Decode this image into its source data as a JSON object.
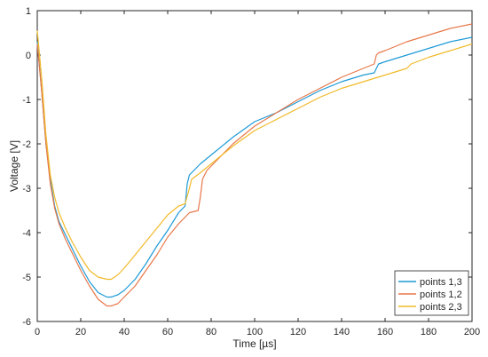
{
  "chart_data": {
    "type": "line",
    "title": "",
    "xlabel": "Time [µs]",
    "ylabel": "Voltage [V]",
    "xlim": [
      0,
      200
    ],
    "ylim": [
      -6,
      1
    ],
    "xticks": [
      0,
      20,
      40,
      60,
      80,
      100,
      120,
      140,
      160,
      180,
      200
    ],
    "xtick_labels": [
      "0",
      "20",
      "40",
      "60",
      "80",
      "100",
      "120",
      "140",
      "160",
      "180",
      "200"
    ],
    "yticks": [
      1,
      0,
      -1,
      -2,
      -3,
      -4,
      -5,
      -6
    ],
    "ytick_labels": [
      "1",
      "0",
      "-1",
      "-2",
      "-3",
      "-4",
      "-5",
      "-6"
    ],
    "grid": false,
    "legend_position": "bottom-right",
    "series": [
      {
        "name": "points 1,3",
        "color": "#1f9ad6",
        "points": [
          [
            0,
            0.3
          ],
          [
            2,
            -0.8
          ],
          [
            4,
            -2.0
          ],
          [
            6,
            -2.8
          ],
          [
            8,
            -3.4
          ],
          [
            10,
            -3.75
          ],
          [
            13,
            -4.05
          ],
          [
            16,
            -4.35
          ],
          [
            20,
            -4.75
          ],
          [
            24,
            -5.1
          ],
          [
            28,
            -5.35
          ],
          [
            32,
            -5.45
          ],
          [
            34,
            -5.45
          ],
          [
            37,
            -5.4
          ],
          [
            40,
            -5.3
          ],
          [
            45,
            -5.05
          ],
          [
            50,
            -4.7
          ],
          [
            55,
            -4.3
          ],
          [
            60,
            -3.95
          ],
          [
            65,
            -3.55
          ],
          [
            68,
            -3.4
          ],
          [
            69,
            -2.9
          ],
          [
            70,
            -2.7
          ],
          [
            75,
            -2.45
          ],
          [
            80,
            -2.25
          ],
          [
            90,
            -1.85
          ],
          [
            100,
            -1.5
          ],
          [
            110,
            -1.3
          ],
          [
            120,
            -1.05
          ],
          [
            130,
            -0.8
          ],
          [
            140,
            -0.6
          ],
          [
            150,
            -0.45
          ],
          [
            155,
            -0.4
          ],
          [
            156,
            -0.3
          ],
          [
            157,
            -0.2
          ],
          [
            160,
            -0.15
          ],
          [
            170,
            0.0
          ],
          [
            180,
            0.15
          ],
          [
            190,
            0.3
          ],
          [
            200,
            0.4
          ]
        ]
      },
      {
        "name": "points 1,2",
        "color": "#e8784a",
        "points": [
          [
            0,
            0.25
          ],
          [
            2,
            -0.8
          ],
          [
            4,
            -2.0
          ],
          [
            6,
            -2.9
          ],
          [
            8,
            -3.45
          ],
          [
            10,
            -3.8
          ],
          [
            13,
            -4.15
          ],
          [
            16,
            -4.45
          ],
          [
            20,
            -4.85
          ],
          [
            24,
            -5.2
          ],
          [
            28,
            -5.5
          ],
          [
            32,
            -5.65
          ],
          [
            34,
            -5.65
          ],
          [
            37,
            -5.6
          ],
          [
            40,
            -5.45
          ],
          [
            45,
            -5.2
          ],
          [
            50,
            -4.85
          ],
          [
            55,
            -4.5
          ],
          [
            60,
            -4.1
          ],
          [
            65,
            -3.8
          ],
          [
            70,
            -3.55
          ],
          [
            74,
            -3.5
          ],
          [
            75,
            -3.2
          ],
          [
            76,
            -2.8
          ],
          [
            78,
            -2.6
          ],
          [
            82,
            -2.4
          ],
          [
            90,
            -2.0
          ],
          [
            100,
            -1.6
          ],
          [
            110,
            -1.3
          ],
          [
            120,
            -1.0
          ],
          [
            130,
            -0.75
          ],
          [
            140,
            -0.5
          ],
          [
            150,
            -0.3
          ],
          [
            155,
            -0.2
          ],
          [
            156,
            0.0
          ],
          [
            157,
            0.05
          ],
          [
            160,
            0.1
          ],
          [
            170,
            0.3
          ],
          [
            180,
            0.45
          ],
          [
            190,
            0.6
          ],
          [
            200,
            0.7
          ]
        ]
      },
      {
        "name": "points 2,3",
        "color": "#f1ba2a",
        "points": [
          [
            0,
            0.55
          ],
          [
            2,
            -0.5
          ],
          [
            4,
            -1.8
          ],
          [
            6,
            -2.7
          ],
          [
            8,
            -3.2
          ],
          [
            10,
            -3.55
          ],
          [
            13,
            -3.9
          ],
          [
            16,
            -4.2
          ],
          [
            20,
            -4.55
          ],
          [
            24,
            -4.85
          ],
          [
            28,
            -5.0
          ],
          [
            32,
            -5.05
          ],
          [
            34,
            -5.05
          ],
          [
            37,
            -4.95
          ],
          [
            40,
            -4.8
          ],
          [
            45,
            -4.5
          ],
          [
            50,
            -4.2
          ],
          [
            55,
            -3.9
          ],
          [
            60,
            -3.6
          ],
          [
            65,
            -3.4
          ],
          [
            68,
            -3.35
          ],
          [
            70,
            -3.0
          ],
          [
            71,
            -2.8
          ],
          [
            75,
            -2.65
          ],
          [
            80,
            -2.45
          ],
          [
            90,
            -2.05
          ],
          [
            100,
            -1.7
          ],
          [
            110,
            -1.45
          ],
          [
            120,
            -1.2
          ],
          [
            130,
            -0.95
          ],
          [
            140,
            -0.75
          ],
          [
            150,
            -0.6
          ],
          [
            160,
            -0.45
          ],
          [
            170,
            -0.3
          ],
          [
            172,
            -0.2
          ],
          [
            180,
            -0.05
          ],
          [
            190,
            0.1
          ],
          [
            200,
            0.25
          ]
        ]
      }
    ]
  }
}
